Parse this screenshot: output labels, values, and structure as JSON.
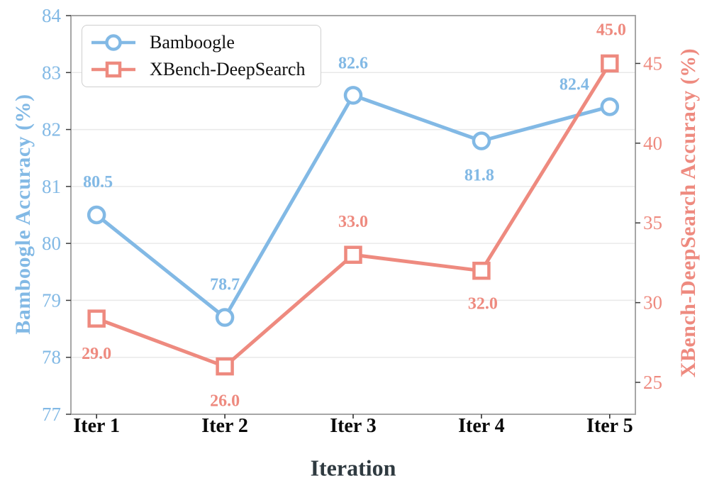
{
  "chart_data": {
    "type": "line",
    "categories": [
      "Iter 1",
      "Iter 2",
      "Iter 3",
      "Iter 4",
      "Iter 5"
    ],
    "xlabel": "Iteration",
    "left_axis": {
      "label": "Bamboogle Accuracy (%)",
      "min": 77,
      "max": 84,
      "ticks": [
        77,
        78,
        79,
        80,
        81,
        82,
        83,
        84
      ],
      "color": "#82B9E5"
    },
    "right_axis": {
      "label": "XBench-DeepSearch Accuracy (%)",
      "min": 23,
      "max": 48,
      "ticks": [
        25,
        30,
        35,
        40,
        45
      ],
      "color": "#EE8A7F"
    },
    "series": [
      {
        "name": "Bamboogle",
        "axis": "left",
        "marker": "circle",
        "color": "#82B9E5",
        "values": [
          80.5,
          78.7,
          82.6,
          81.8,
          82.4
        ]
      },
      {
        "name": "XBench-DeepSearch",
        "axis": "right",
        "marker": "square",
        "color": "#EE8A7F",
        "values": [
          29.0,
          26.0,
          33.0,
          32.0,
          45.0
        ]
      }
    ],
    "legend": {
      "position": "top-left",
      "items": [
        "Bamboogle",
        "XBench-DeepSearch"
      ]
    },
    "grid": true,
    "colors": {
      "grid": "#E9E9E9",
      "spine": "#9C9C9C",
      "xlabel": "#2F3A40",
      "xtick": "#0A0A0A",
      "tick_mark": "#3A3A3A",
      "marker_fill": "#FFFFFF"
    }
  }
}
